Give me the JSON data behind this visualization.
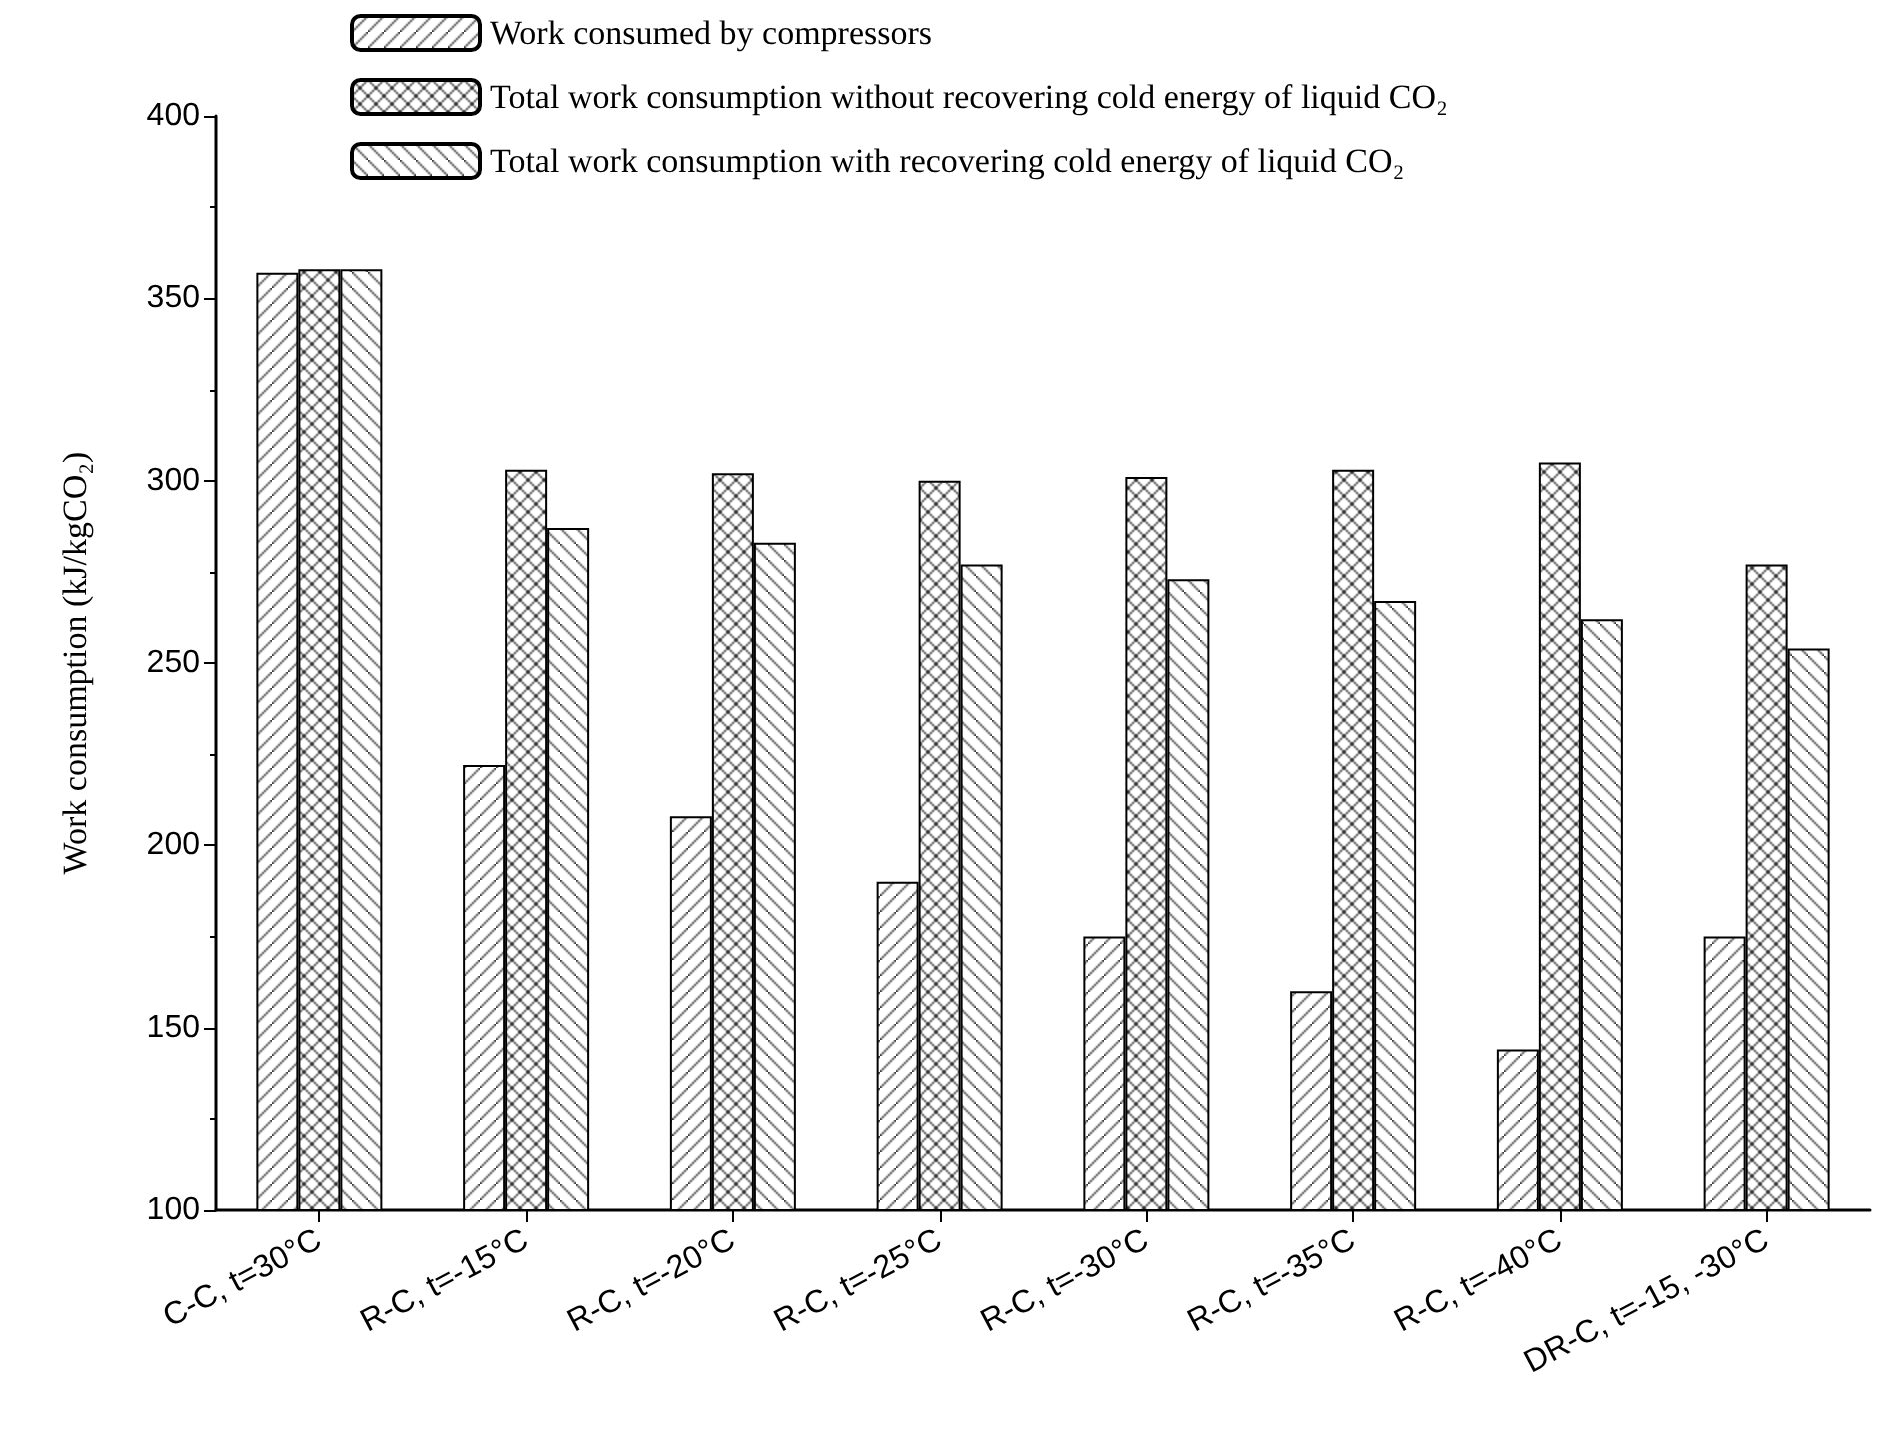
{
  "chart_data": {
    "type": "bar",
    "ylabel": "Work consumption (kJ/kgCO₂)",
    "categories": [
      "C-C, t=30°C",
      "R-C, t=-15°C",
      "R-C, t=-20°C",
      "R-C, t=-25°C",
      "R-C, t=-30°C",
      "R-C, t=-35°C",
      "R-C, t=-40°C",
      "DR-C, t=-15, -30°C"
    ],
    "series": [
      {
        "name": "Work consumed by compressors",
        "color": "#000000",
        "values": [
          357,
          222,
          208,
          190,
          175,
          160,
          144,
          175
        ]
      },
      {
        "name": "Total work consumption without recovering cold energy of liquid CO₂",
        "color": "#000000",
        "values": [
          358,
          303,
          302,
          300,
          301,
          303,
          305,
          277
        ]
      },
      {
        "name": "Total work consumption with recovering cold energy of liquid CO₂",
        "color": "#000000",
        "values": [
          358,
          287,
          283,
          277,
          273,
          267,
          262,
          254
        ]
      }
    ],
    "ylim": [
      100,
      400
    ],
    "yticks": [
      100,
      150,
      200,
      250,
      300,
      350,
      400
    ],
    "grid": false,
    "legend": "top"
  }
}
